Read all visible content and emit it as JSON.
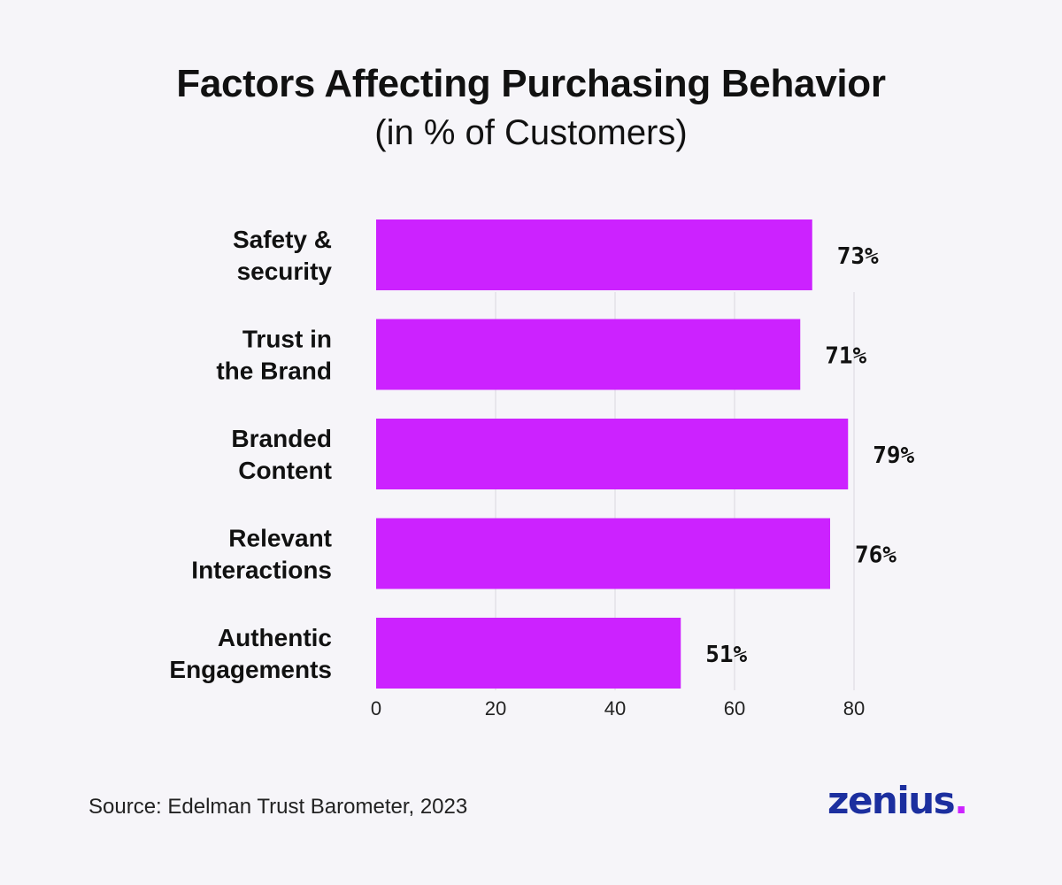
{
  "header": {
    "title": "Factors Affecting Purchasing Behavior",
    "subtitle": "(in % of Customers)"
  },
  "chart_data": {
    "type": "bar",
    "orientation": "horizontal",
    "categories": [
      [
        "Safety &",
        "security"
      ],
      [
        "Trust in",
        "the Brand"
      ],
      [
        "Branded",
        "Content"
      ],
      [
        "Relevant",
        "Interactions"
      ],
      [
        "Authentic",
        "Engagements"
      ]
    ],
    "values": [
      73,
      71,
      79,
      76,
      51
    ],
    "value_labels": [
      "73%",
      "71%",
      "79%",
      "76%",
      "51%"
    ],
    "xlim": [
      0,
      80
    ],
    "xticks": [
      0,
      20,
      40,
      60,
      80
    ],
    "grid": true,
    "bar_color": "#cc22ff",
    "grid_color": "#d9d6de"
  },
  "footer": {
    "source": "Source: Edelman Trust Barometer, 2023",
    "logo_text": "zenius",
    "logo_dot": ".",
    "logo_color": "#1c2f9f",
    "logo_dot_color": "#cc22ff"
  }
}
